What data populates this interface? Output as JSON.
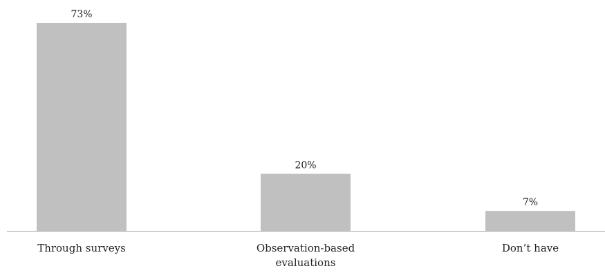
{
  "chart_data": {
    "type": "bar",
    "categories": [
      [
        "Through surveys"
      ],
      [
        "Observation-based",
        "evaluations"
      ],
      [
        "Don’t have"
      ]
    ],
    "values": [
      73,
      20,
      7
    ],
    "data_labels": [
      "73%",
      "20%",
      "7%"
    ],
    "unit": "%",
    "ylim": [
      0,
      73
    ],
    "grid": false,
    "legend": "none",
    "colors": {
      "bar": "#c0c0c0",
      "axis": "#a6a6a6",
      "text": "#222222"
    }
  }
}
